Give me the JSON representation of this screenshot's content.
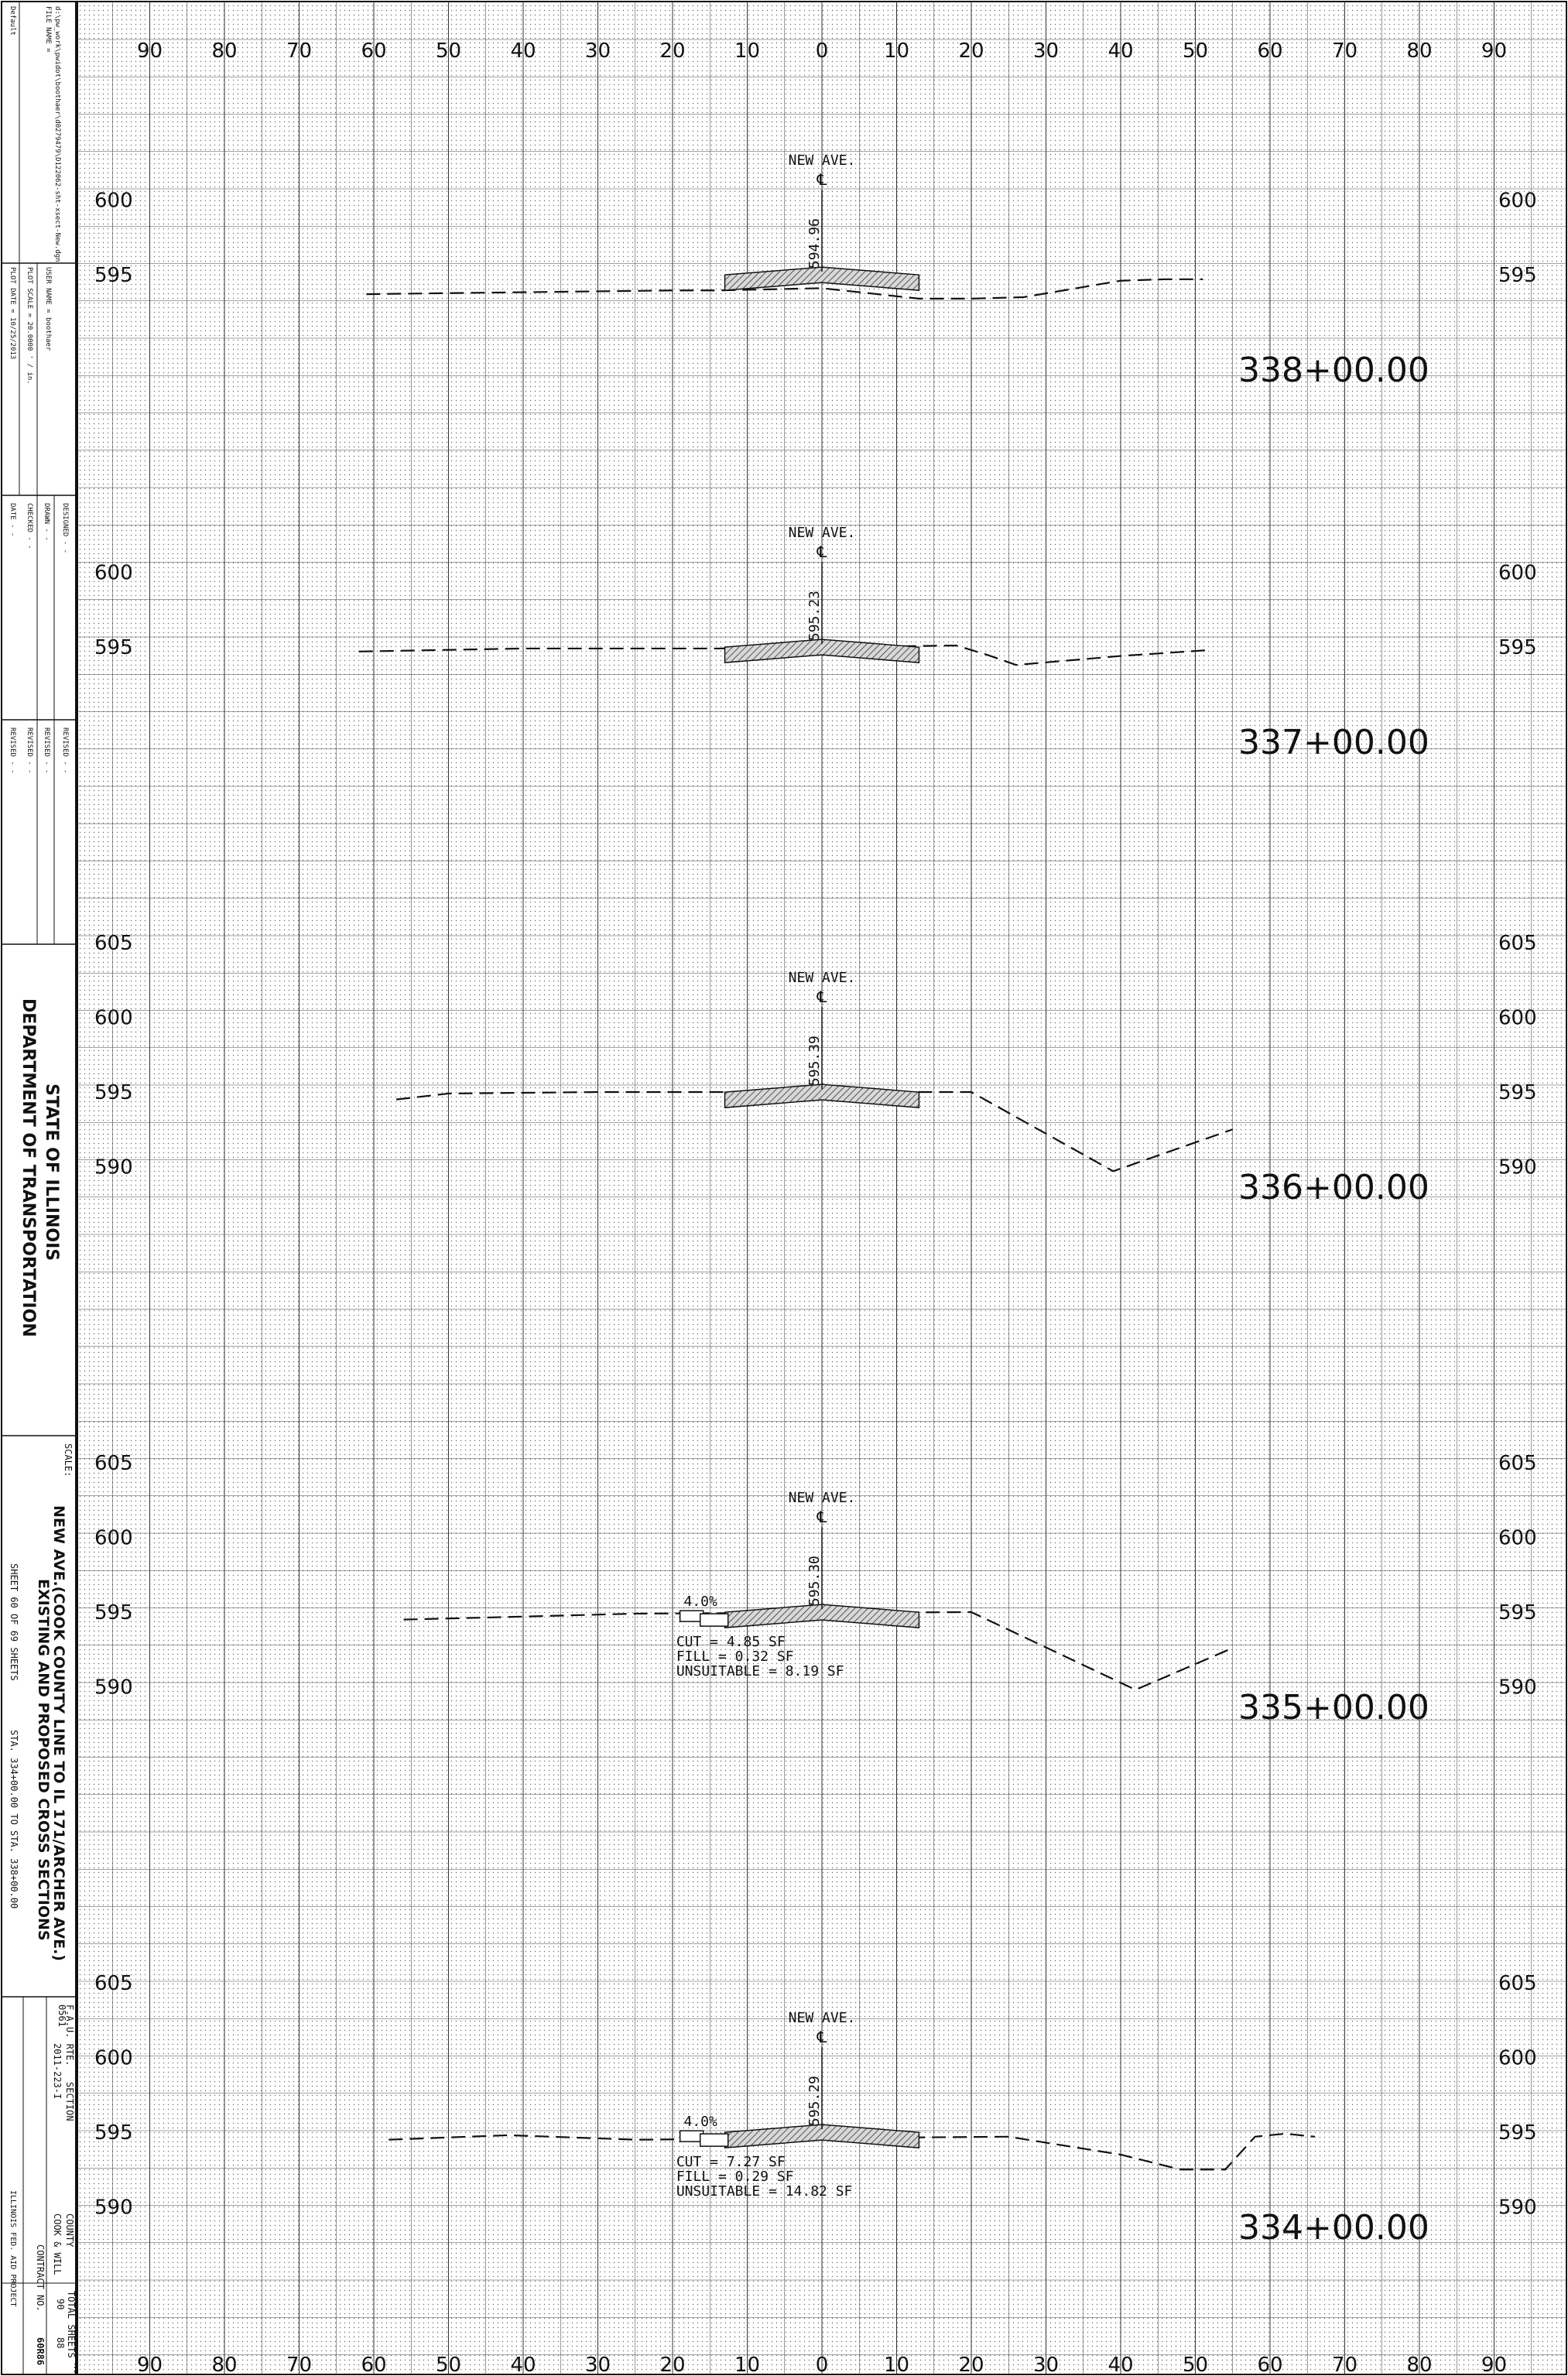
{
  "title_block": {
    "file_label": "FILE NAME =",
    "file_value": "d:\\pw_work\\pwidot\\boothaer\\d0279479\\D122062-sht-xsect-New.dgn",
    "user_label": "USER NAME = boothaer",
    "plot_scale": "PLOT SCALE = 20.0000 ' / in.",
    "plot_date": "PLOT DATE = 10/25/2013",
    "default_label": "Default",
    "designed": "DESIGNED -  -",
    "drawn": "DRAWN    -  -",
    "checked": "CHECKED  -  -",
    "date": "DATE     -  -",
    "revised": "REVISED  -  -",
    "agency_line1": "STATE OF ILLINOIS",
    "agency_line2": "DEPARTMENT OF TRANSPORTATION",
    "sheet_title_line1": "NEW AVE.(COOK COUNTY LINE TO IL 171/ARCHER AVE.)",
    "sheet_title_line2": "EXISTING AND PROPOSED CROSS SECTIONS",
    "scale_label": "SCALE:",
    "sheet_info": "SHEET 60  OF 69  SHEETS",
    "sta_range": "STA. 334+00.00   TO STA. 338+00.00",
    "fau_label": "F.A.U. RTE.",
    "fau_value": "0561",
    "section_label": "SECTION",
    "section_value": "2011-223-I",
    "county_label": "COUNTY",
    "county_value": "COOK & WILL",
    "total_sheets_label": "TOTAL SHEETS",
    "total_sheets_value": "90",
    "sheet_no_label": "SHEET NO.",
    "sheet_no_value": "88",
    "contract_label": "CONTRACT NO.",
    "contract_value": "60R86",
    "fed_aid": "ILLINOIS FED. AID PROJECT"
  },
  "x_axis": {
    "ticks": [
      "90",
      "80",
      "70",
      "60",
      "50",
      "40",
      "30",
      "20",
      "10",
      "0",
      "10",
      "20",
      "30",
      "40",
      "50",
      "60",
      "70",
      "80",
      "90"
    ]
  },
  "sections": [
    {
      "station": "338+00.00",
      "road_label": "NEW AVE.",
      "centerline_mark": "℄",
      "cl_elevation": "594.96",
      "elev_labels": [
        "600",
        "595"
      ],
      "cut": "",
      "fill": "",
      "unsuitable": "",
      "slope": ""
    },
    {
      "station": "337+00.00",
      "road_label": "NEW AVE.",
      "centerline_mark": "℄",
      "cl_elevation": "595.23",
      "elev_labels": [
        "600",
        "595"
      ],
      "cut": "",
      "fill": "",
      "unsuitable": "",
      "slope": ""
    },
    {
      "station": "336+00.00",
      "road_label": "NEW AVE.",
      "centerline_mark": "℄",
      "cl_elevation": "595.39",
      "elev_labels": [
        "605",
        "600",
        "595",
        "590"
      ],
      "cut": "",
      "fill": "",
      "unsuitable": "",
      "slope": ""
    },
    {
      "station": "335+00.00",
      "road_label": "NEW AVE.",
      "centerline_mark": "℄",
      "cl_elevation": "595.30",
      "elev_labels": [
        "605",
        "600",
        "595",
        "590"
      ],
      "cut": "CUT = 4.85 SF",
      "fill": "FILL = 0.32 SF",
      "unsuitable": "UNSUITABLE = 8.19 SF",
      "slope": "4.0%"
    },
    {
      "station": "334+00.00",
      "road_label": "NEW AVE.",
      "centerline_mark": "℄",
      "cl_elevation": "595.29",
      "elev_labels": [
        "605",
        "600",
        "595",
        "590"
      ],
      "cut": "CUT = 7.27 SF",
      "fill": "FILL = 0.29 SF",
      "unsuitable": "UNSUITABLE = 14.82 SF",
      "slope": "4.0%"
    }
  ]
}
